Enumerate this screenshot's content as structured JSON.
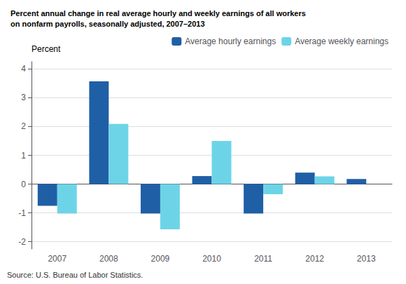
{
  "chart_data": {
    "type": "bar",
    "title": "Percent annual change in real average hourly and weekly earnings of all workers\non nonfarm payrolls, seasonally adjusted, 2007–2013",
    "y_label": "Percent",
    "annotations": [
      "Source: U.S. Bureau of Labor Statistics."
    ],
    "categories": [
      "2007",
      "2008",
      "2009",
      "2010",
      "2011",
      "2012",
      "2013"
    ],
    "series": [
      {
        "name": "Average hourly earnings",
        "color": "#1F5FA6",
        "values": [
          -0.75,
          3.57,
          -1.02,
          0.28,
          -1.02,
          0.4,
          0.18
        ]
      },
      {
        "name": "Average weekly earnings",
        "color": "#6DD4E8",
        "values": [
          -1.02,
          2.09,
          -1.57,
          1.5,
          -0.35,
          0.27,
          0.0
        ]
      }
    ],
    "ylim": [
      -2.25,
      4.25
    ],
    "yticks": [
      -2,
      -1,
      0,
      1,
      2,
      3,
      4
    ],
    "grid": true,
    "legend": "upper right"
  }
}
